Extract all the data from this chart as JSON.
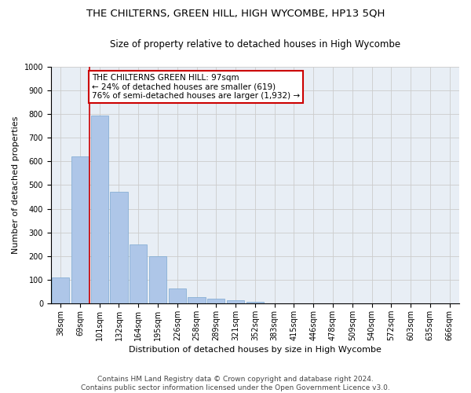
{
  "title": "THE CHILTERNS, GREEN HILL, HIGH WYCOMBE, HP13 5QH",
  "subtitle": "Size of property relative to detached houses in High Wycombe",
  "xlabel": "Distribution of detached houses by size in High Wycombe",
  "ylabel": "Number of detached properties",
  "categories": [
    "38sqm",
    "69sqm",
    "101sqm",
    "132sqm",
    "164sqm",
    "195sqm",
    "226sqm",
    "258sqm",
    "289sqm",
    "321sqm",
    "352sqm",
    "383sqm",
    "415sqm",
    "446sqm",
    "478sqm",
    "509sqm",
    "540sqm",
    "572sqm",
    "603sqm",
    "635sqm",
    "666sqm"
  ],
  "values": [
    110,
    620,
    795,
    470,
    250,
    200,
    62,
    27,
    20,
    14,
    8,
    0,
    0,
    0,
    0,
    0,
    0,
    0,
    0,
    0,
    0
  ],
  "bar_color": "#aec6e8",
  "vline_color": "#cc0000",
  "annotation_line1": "THE CHILTERNS GREEN HILL: 97sqm",
  "annotation_line2": "← 24% of detached houses are smaller (619)",
  "annotation_line3": "76% of semi-detached houses are larger (1,932) →",
  "annotation_box_color": "#ffffff",
  "annotation_box_edge": "#cc0000",
  "ylim": [
    0,
    1000
  ],
  "yticks": [
    0,
    100,
    200,
    300,
    400,
    500,
    600,
    700,
    800,
    900,
    1000
  ],
  "grid_color": "#cccccc",
  "bg_color": "#e8eef5",
  "footnote": "Contains HM Land Registry data © Crown copyright and database right 2024.\nContains public sector information licensed under the Open Government Licence v3.0.",
  "title_fontsize": 9.5,
  "subtitle_fontsize": 8.5,
  "xlabel_fontsize": 8,
  "ylabel_fontsize": 8,
  "tick_fontsize": 7,
  "annotation_fontsize": 7.5,
  "footnote_fontsize": 6.5
}
